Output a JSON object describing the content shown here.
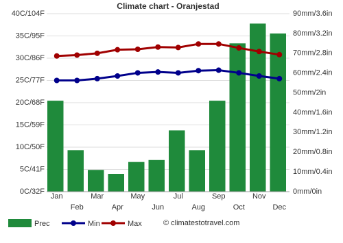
{
  "chart_data": {
    "type": "climate",
    "title": "Climate chart - Oranjestad",
    "categories": [
      "Jan",
      "Feb",
      "Mar",
      "Apr",
      "May",
      "Jun",
      "Jul",
      "Aug",
      "Sep",
      "Oct",
      "Nov",
      "Dec"
    ],
    "series": [
      {
        "name": "Prec",
        "type": "bar",
        "axis": "y2",
        "color": "#1f8a3b",
        "values": [
          46,
          21,
          11,
          9,
          15,
          16,
          31,
          21,
          46,
          75,
          85,
          80
        ]
      },
      {
        "name": "Min",
        "type": "line",
        "color": "#00008b",
        "values": [
          25,
          25,
          25.4,
          26,
          26.7,
          26.9,
          26.7,
          27.2,
          27.3,
          26.7,
          26,
          25.4
        ]
      },
      {
        "name": "Max",
        "type": "line",
        "color": "#a00000",
        "values": [
          30.5,
          30.7,
          31.1,
          31.9,
          32,
          32.5,
          32.4,
          33.2,
          33.2,
          32.3,
          31.5,
          30.8
        ]
      }
    ],
    "ylim": [
      0,
      40
    ],
    "yticks": [
      {
        "value": 0,
        "label": "0C/32F"
      },
      {
        "value": 5,
        "label": "5C/41F"
      },
      {
        "value": 10,
        "label": "10C/50F"
      },
      {
        "value": 15,
        "label": "15C/59F"
      },
      {
        "value": 20,
        "label": "20C/68F"
      },
      {
        "value": 25,
        "label": "25C/77F"
      },
      {
        "value": 30,
        "label": "30C/86F"
      },
      {
        "value": 35,
        "label": "35C/95F"
      },
      {
        "value": 40,
        "label": "40C/104F"
      }
    ],
    "y2lim": [
      0,
      90
    ],
    "y2ticks": [
      {
        "value": 0,
        "label": "0mm/0in"
      },
      {
        "value": 10,
        "label": "10mm/0.4in"
      },
      {
        "value": 20,
        "label": "20mm/0.8in"
      },
      {
        "value": 30,
        "label": "30mm/1.2in"
      },
      {
        "value": 40,
        "label": "40mm/1.6in"
      },
      {
        "value": 50,
        "label": "50mm/2in"
      },
      {
        "value": 60,
        "label": "60mm/2.4in"
      },
      {
        "value": 70,
        "label": "70mm/2.8in"
      },
      {
        "value": 80,
        "label": "80mm/3.2in"
      },
      {
        "value": 90,
        "label": "90mm/3.6in"
      }
    ],
    "grid": true,
    "credit": "© climatestotravel.com"
  }
}
